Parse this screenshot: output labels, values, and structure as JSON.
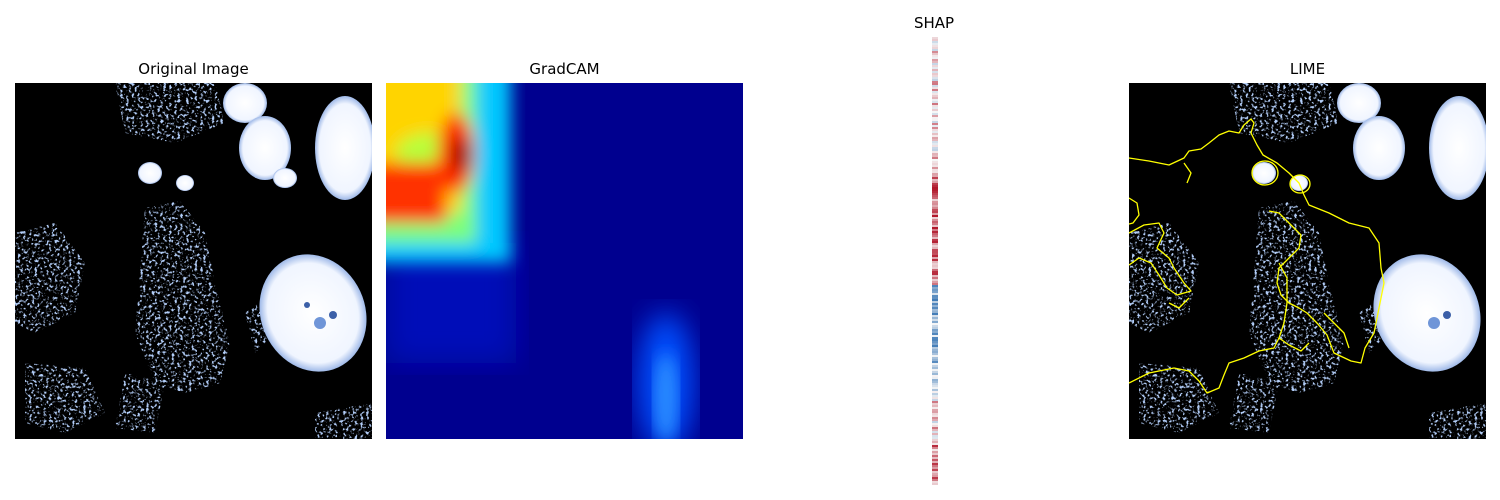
{
  "panels": {
    "original": {
      "title": "Original Image"
    },
    "gradcam": {
      "title": "GradCAM"
    },
    "shap": {
      "title": "SHAP"
    },
    "lime": {
      "title": "LIME"
    }
  },
  "colors": {
    "background": "#ffffff",
    "image_bg": "#000000",
    "cell_white": "#f4f8ff",
    "cell_blue": "#6f95d8",
    "gradcam_low": "#00008f",
    "gradcam_high": "#ff2a00",
    "lime_boundary": "#ffff00",
    "shap_pos": "#b2182b",
    "shap_neg": "#2166ac"
  }
}
